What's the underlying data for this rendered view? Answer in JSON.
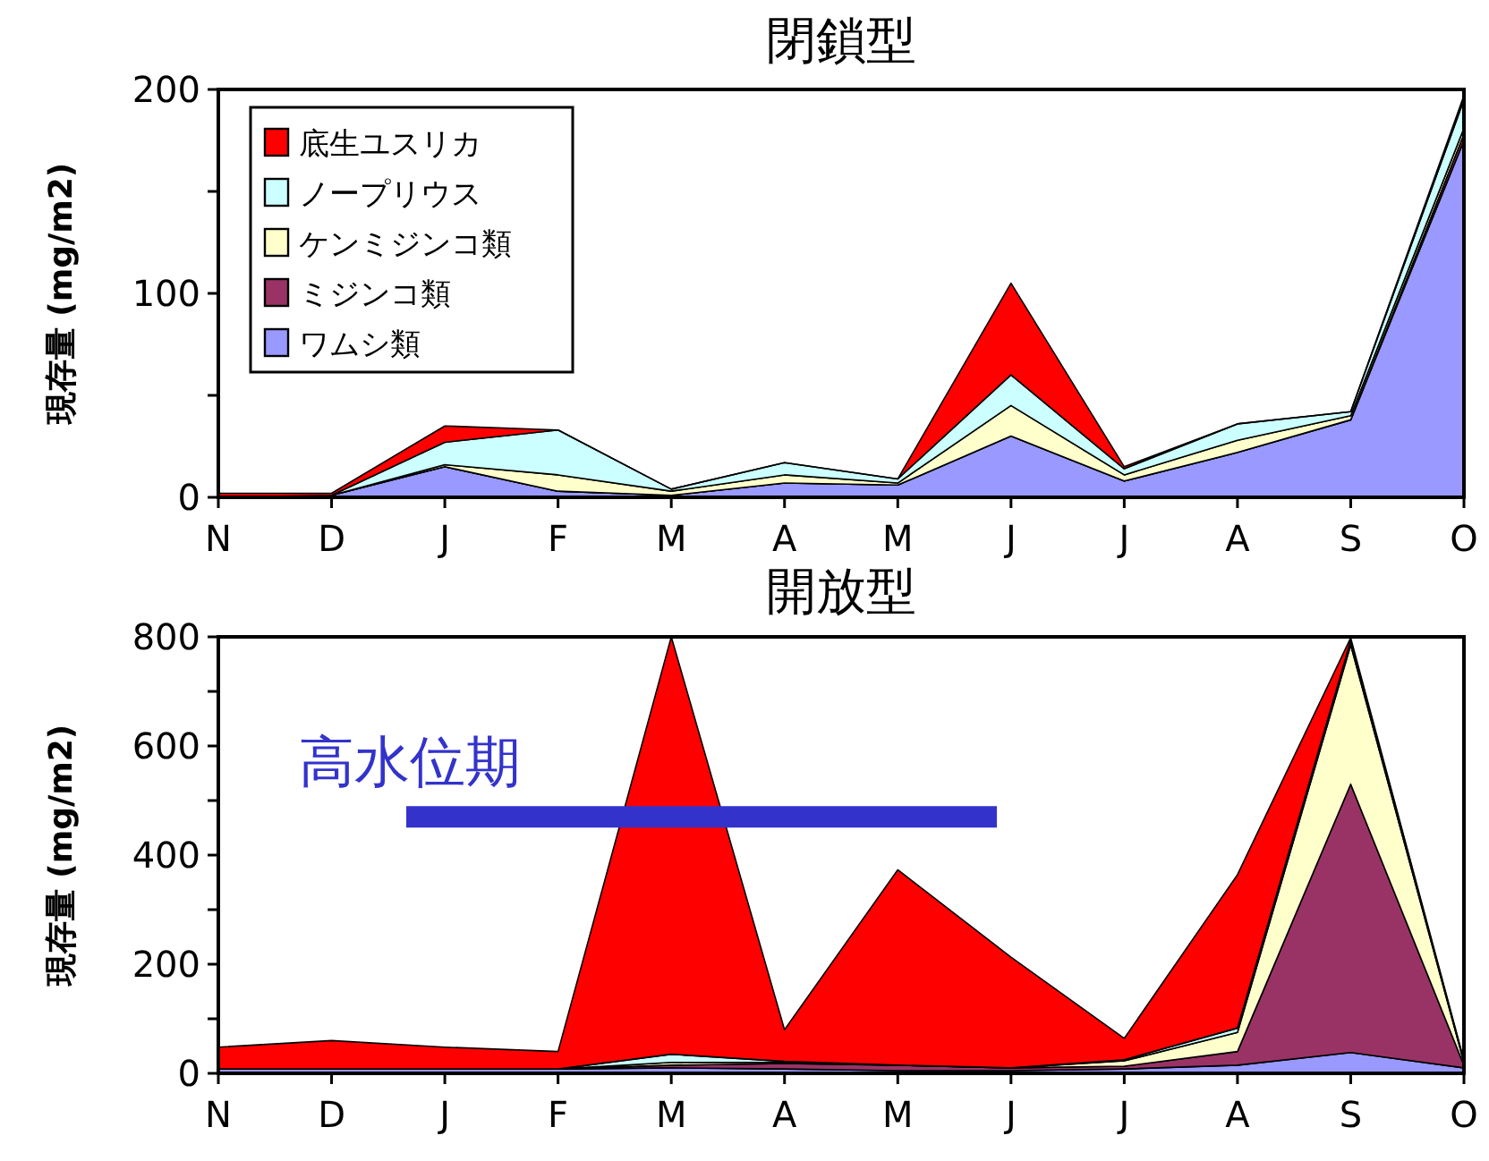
{
  "chart_data": [
    {
      "type": "area",
      "stacked": true,
      "title": "閉鎖型",
      "ylabel": "現存量 (mg/m2)",
      "categories": [
        "N",
        "D",
        "J",
        "F",
        "M",
        "A",
        "M",
        "J",
        "J",
        "A",
        "S",
        "O"
      ],
      "ylim": [
        0,
        200
      ],
      "yticks": [
        0,
        {
          "value": 50,
          "label": null
        },
        100,
        {
          "value": 150,
          "label": null
        },
        200
      ],
      "legend": "top left",
      "grid": false,
      "series": [
        {
          "name": "ワムシ類",
          "color": "#9999ff",
          "values": [
            0,
            1,
            15,
            3,
            1,
            7,
            6,
            30,
            8,
            22,
            38,
            175
          ]
        },
        {
          "name": "ミジンコ類",
          "color": "#993366",
          "values": [
            0,
            0,
            0,
            0,
            0,
            0,
            0,
            0,
            0,
            0,
            0,
            3
          ]
        },
        {
          "name": "ケンミジンコ類",
          "color": "#ffffcc",
          "values": [
            0,
            0,
            1,
            8,
            2,
            4,
            1,
            15,
            3,
            6,
            2,
            3
          ]
        },
        {
          "name": "ノープリウス",
          "color": "#ccffff",
          "values": [
            0,
            0,
            11,
            22,
            1,
            6,
            2,
            15,
            3,
            8,
            2,
            14
          ]
        },
        {
          "name": "底生ユスリカ",
          "color": "#ff0000",
          "values": [
            2,
            1,
            8,
            0,
            0,
            0,
            0,
            45,
            1,
            0,
            0,
            2
          ]
        }
      ]
    },
    {
      "type": "area",
      "stacked": true,
      "title": "開放型",
      "ylabel": "現存量 (mg/m2)",
      "categories": [
        "N",
        "D",
        "J",
        "F",
        "M",
        "A",
        "M",
        "J",
        "J",
        "A",
        "S",
        "O"
      ],
      "ylim": [
        0,
        800
      ],
      "yticks": [
        0,
        {
          "value": 100,
          "label": null
        },
        200,
        {
          "value": 300,
          "label": null
        },
        400,
        {
          "value": 500,
          "label": null
        },
        600,
        {
          "value": 700,
          "label": null
        },
        800
      ],
      "legend": false,
      "grid": false,
      "ref_lines": [
        {
          "axis": "y",
          "value": 470,
          "label": "高水位期",
          "color": "#3333cc"
        }
      ],
      "series": [
        {
          "color": "#9999ff",
          "values": [
            8,
            8,
            8,
            8,
            10,
            8,
            5,
            5,
            8,
            15,
            38,
            10
          ]
        },
        {
          "color": "#993366",
          "values": [
            0,
            0,
            0,
            0,
            5,
            10,
            10,
            5,
            5,
            25,
            492,
            5
          ]
        },
        {
          "color": "#ffffcc",
          "values": [
            0,
            0,
            0,
            0,
            5,
            2,
            0,
            0,
            10,
            35,
            255,
            5
          ]
        },
        {
          "color": "#ccffff",
          "values": [
            0,
            0,
            0,
            0,
            15,
            2,
            0,
            0,
            2,
            8,
            8,
            2
          ]
        },
        {
          "color": "#ff0000",
          "values": [
            40,
            52,
            40,
            32,
            765,
            58,
            358,
            203,
            39,
            281,
            5,
            2
          ]
        }
      ]
    }
  ]
}
